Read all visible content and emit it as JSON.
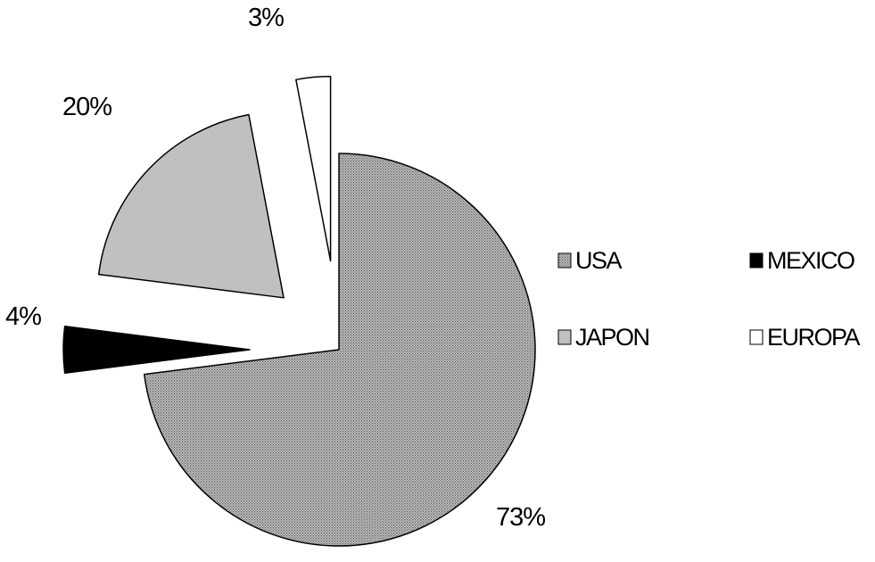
{
  "chart_data": {
    "type": "pie",
    "title": "",
    "exploded": true,
    "categories": [
      "USA",
      "MEXICO",
      "JAPON",
      "EUROPA"
    ],
    "values": [
      73,
      4,
      20,
      3
    ],
    "value_labels": [
      "73%",
      "4%",
      "20%",
      "3%"
    ],
    "colors": {
      "USA": "#9a9a9a",
      "MEXICO": "#000000",
      "JAPON": "#c0c0c0",
      "EUROPA": "#ffffff"
    },
    "patterns": {
      "USA": "fine-crosshatch",
      "MEXICO": "solid",
      "JAPON": "solid",
      "EUROPA": "solid"
    },
    "legend": {
      "position": "right",
      "columns": 2,
      "entries": [
        "USA",
        "MEXICO",
        "JAPON",
        "EUROPA"
      ]
    }
  }
}
